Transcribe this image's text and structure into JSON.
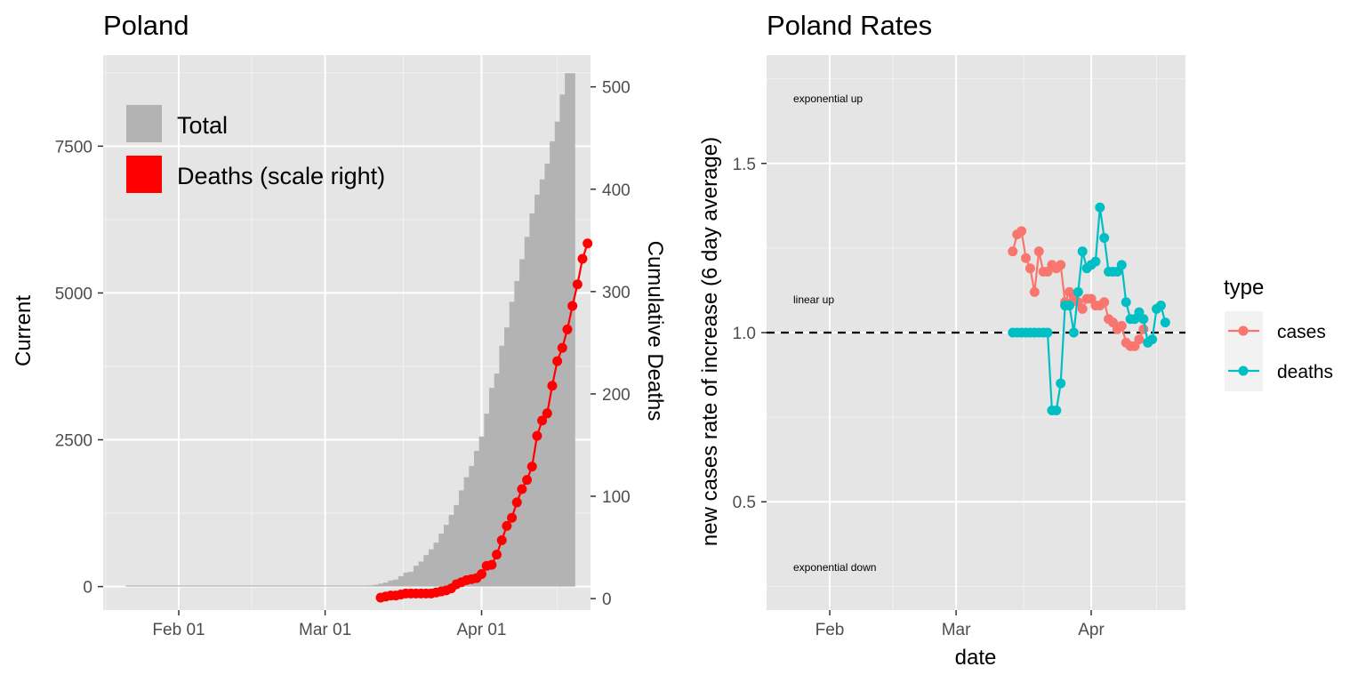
{
  "chart_data": [
    {
      "type": "bar",
      "title": "Poland",
      "ylabel": "Current",
      "y2label": "Cumulative Deaths",
      "xlabel": "",
      "ylim": [
        -400,
        9050
      ],
      "y2lim": [
        -11.2,
        531
      ],
      "x_tick_labels": [
        "Feb 01",
        "Mar 01",
        "Apr 01"
      ],
      "x_tick_days": [
        0,
        29,
        60
      ],
      "y_ticks": [
        0,
        2500,
        5000,
        7500
      ],
      "y2_ticks": [
        0,
        100,
        200,
        300,
        400,
        500
      ],
      "legend": {
        "entries": [
          "Total",
          "Deaths (scale right)"
        ],
        "position": "top-left"
      },
      "colors": {
        "total": "#b3b3b3",
        "deaths": "#ff0000"
      },
      "total_series": {
        "name": "Total",
        "start_date": "2020-01-22",
        "values": [
          0,
          0,
          0,
          0,
          0,
          0,
          0,
          0,
          0,
          0,
          0,
          0,
          0,
          0,
          0,
          0,
          0,
          0,
          0,
          0,
          0,
          0,
          0,
          0,
          0,
          0,
          0,
          0,
          0,
          0,
          0,
          0,
          0,
          0,
          0,
          0,
          0,
          0,
          0,
          0,
          0,
          0,
          1,
          1,
          5,
          6,
          11,
          17,
          22,
          31,
          49,
          68,
          103,
          119,
          177,
          238,
          251,
          355,
          425,
          536,
          634,
          749,
          901,
          1051,
          1221,
          1389,
          1638,
          1862,
          2055,
          2311,
          2554,
          2946,
          3383,
          3627,
          4102,
          4413,
          4848,
          5205,
          5575,
          5955,
          6356,
          6674,
          6934,
          7202,
          7582,
          7918,
          8379,
          8742,
          8742
        ]
      },
      "deaths_series": {
        "name": "Deaths (scale right)",
        "start_date": "2020-03-12",
        "values": [
          1,
          2,
          3,
          3,
          4,
          5,
          5,
          5,
          5,
          5,
          5,
          6,
          7,
          8,
          10,
          14,
          16,
          18,
          19,
          20,
          24,
          32,
          33,
          43,
          57,
          71,
          79,
          94,
          107,
          116,
          129,
          159,
          174,
          181,
          208,
          232,
          245,
          263,
          286,
          307,
          332,
          347
        ]
      }
    },
    {
      "type": "line",
      "title": "Poland Rates",
      "xlabel": "date",
      "ylabel": "new cases rate of increase (6 day average)",
      "ylim": [
        0.18,
        1.82
      ],
      "x_tick_labels": [
        "Feb",
        "Mar",
        "Apr"
      ],
      "x_tick_days": [
        0,
        29,
        60
      ],
      "y_ticks": [
        0.5,
        1.0,
        1.5
      ],
      "y_tick_labels": [
        "0.5",
        "1.0",
        "1.5"
      ],
      "reference_line": 1.0,
      "annotations": [
        "exponential up",
        "linear up",
        "exponential down"
      ],
      "legend": {
        "title": "type",
        "position": "right"
      },
      "series": [
        {
          "name": "cases",
          "color": "#F8766D",
          "start_date": "2020-03-14",
          "values": [
            1.24,
            1.29,
            1.3,
            1.22,
            1.19,
            1.12,
            1.24,
            1.18,
            1.18,
            1.2,
            1.19,
            1.2,
            1.09,
            1.12,
            1.1,
            1.09,
            1.07,
            1.1,
            1.1,
            1.08,
            1.08,
            1.09,
            1.04,
            1.03,
            1.01,
            1.02,
            0.97,
            0.96,
            0.96,
            0.98,
            1.01
          ]
        },
        {
          "name": "deaths",
          "color": "#00BFC4",
          "start_date": "2020-03-14",
          "values": [
            1,
            1,
            1,
            1,
            1,
            1,
            1,
            1,
            1,
            0.77,
            0.77,
            0.85,
            1.08,
            1.08,
            1.0,
            1.12,
            1.24,
            1.19,
            1.2,
            1.21,
            1.37,
            1.28,
            1.18,
            1.18,
            1.18,
            1.2,
            1.09,
            1.04,
            1.04,
            1.06,
            1.04,
            0.97,
            0.98,
            1.07,
            1.08,
            1.03
          ]
        }
      ]
    }
  ]
}
